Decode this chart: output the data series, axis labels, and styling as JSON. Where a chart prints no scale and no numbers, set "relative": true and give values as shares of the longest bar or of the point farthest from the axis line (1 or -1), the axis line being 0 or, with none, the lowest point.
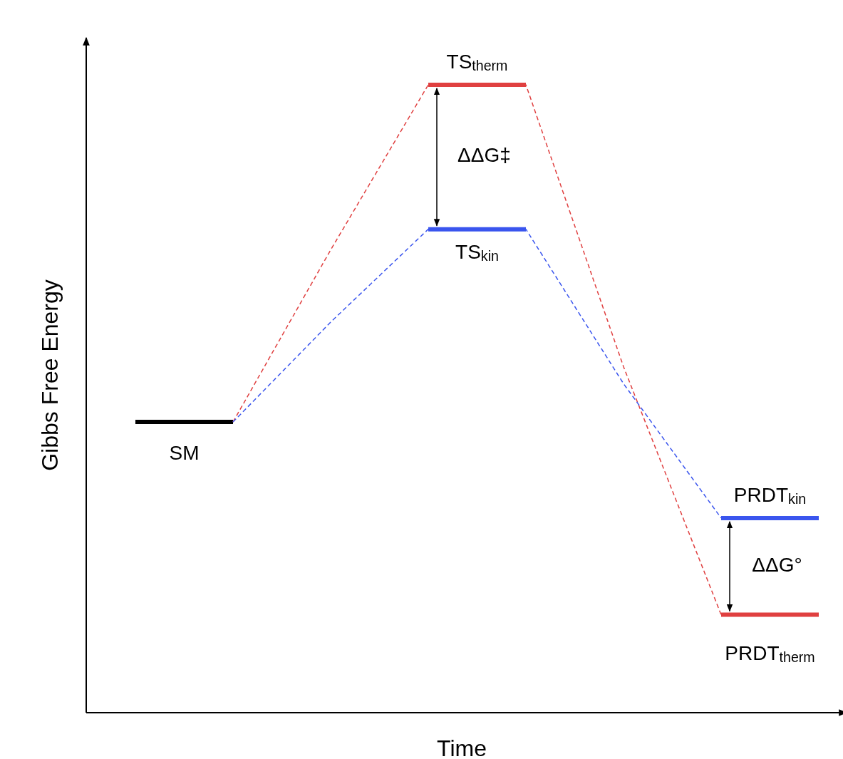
{
  "chart_data": {
    "type": "line",
    "relative": true,
    "xlabel": "Time",
    "ylabel": "Gibbs Free Energy",
    "categories": [
      null,
      null,
      null,
      null,
      null,
      null,
      null,
      null
    ],
    "series": [
      {
        "color": "#000000",
        "line_style": "solid",
        "values": [
          0.463,
          0.463,
          null,
          null,
          null,
          null,
          null,
          null
        ]
      },
      {
        "color": "#e04040",
        "line_style": "dashed",
        "values": [
          null,
          0.463,
          0.737,
          1,
          1,
          0.551,
          0.156,
          null
        ]
      },
      {
        "color": "#3a55ee",
        "line_style": "dashed",
        "values": [
          null,
          0.463,
          0.622,
          0.77,
          0.77,
          0.524,
          0.31,
          null
        ]
      },
      {
        "color": "#e04040",
        "line_style": "solid",
        "values": [
          null,
          null,
          null,
          1,
          1,
          null,
          0.156,
          0.156
        ]
      },
      {
        "color": "#3a55ee",
        "line_style": "solid",
        "values": [
          null,
          null,
          null,
          0.77,
          0.77,
          null,
          0.31,
          0.31
        ]
      }
    ],
    "annotations": [
      "TS$_{therm}$",
      "TS$_{kin}$",
      "SM",
      "PRDT$_{kin}$",
      "PRDT$_{therm}$",
      "ΔΔG‡",
      "ΔΔG°"
    ]
  }
}
